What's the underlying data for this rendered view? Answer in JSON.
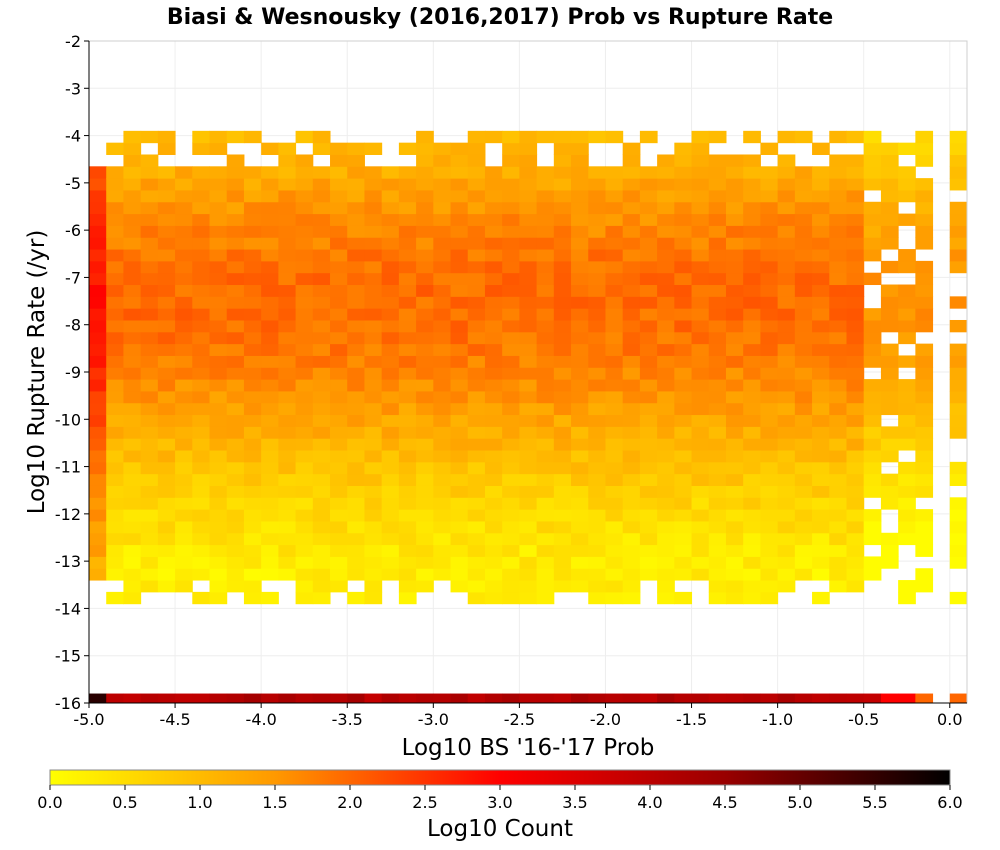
{
  "chart_data": {
    "type": "heatmap",
    "title": "Biasi & Wesnousky (2016,2017) Prob vs Rupture Rate",
    "xlabel": "Log10 BS '16-'17 Prob",
    "ylabel": "Log10 Rupture Rate (/yr)",
    "xlim": [
      -5.0,
      0.1
    ],
    "ylim": [
      -16,
      -2
    ],
    "x_ticks": [
      "-5.0",
      "-4.5",
      "-4.0",
      "-3.5",
      "-3.0",
      "-2.5",
      "-2.0",
      "-1.5",
      "-1.0",
      "-0.5",
      "0.0"
    ],
    "x_tick_values": [
      -5.0,
      -4.5,
      -4.0,
      -3.5,
      -3.0,
      -2.5,
      -2.0,
      -1.5,
      -1.0,
      -0.5,
      0.0
    ],
    "y_ticks": [
      "-2",
      "-3",
      "-4",
      "-5",
      "-6",
      "-7",
      "-8",
      "-9",
      "-10",
      "-11",
      "-12",
      "-13",
      "-14",
      "-15",
      "-16"
    ],
    "y_tick_values": [
      -2,
      -3,
      -4,
      -5,
      -6,
      -7,
      -8,
      -9,
      -10,
      -11,
      -12,
      -13,
      -14,
      -15,
      -16
    ],
    "bin_width": 0.1,
    "bin_height": 0.25,
    "colorbar": {
      "label": "Log10 Count",
      "range": [
        0.0,
        6.0
      ],
      "ticks": [
        "0.0",
        "0.5",
        "1.0",
        "1.5",
        "2.0",
        "2.5",
        "3.0",
        "3.5",
        "4.0",
        "4.5",
        "5.0",
        "5.5",
        "6.0"
      ],
      "tick_values": [
        0.0,
        0.5,
        1.0,
        1.5,
        2.0,
        2.5,
        3.0,
        3.5,
        4.0,
        4.5,
        5.0,
        5.5,
        6.0
      ],
      "colors": [
        "#ffff00",
        "#ff9900",
        "#ff0000",
        "#990000",
        "#000000"
      ]
    },
    "density_model": {
      "description": "approximate log10 count per bin; peak near rate -7.5, lower rate edge -13.9, upper edge -4.1",
      "base_peak": 1.95,
      "peak_rate": -7.5,
      "rate_sd": 4.0,
      "top_edge_rate": -4.1,
      "bottom_edge_rate": -13.9,
      "first_column_boost": 0.95,
      "bottom_row_value": 4.1,
      "bottom_row_rate": -16
    },
    "grid": true
  }
}
